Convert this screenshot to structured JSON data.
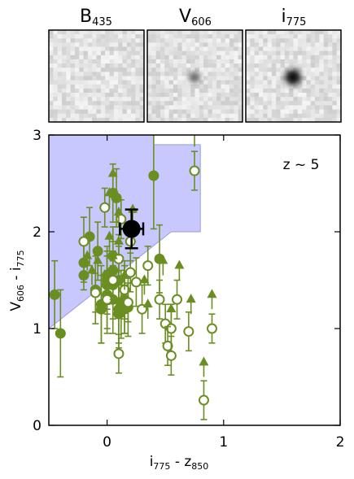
{
  "stamps": [
    {
      "label": "B",
      "sub": "435",
      "source": "none"
    },
    {
      "label": "V",
      "sub": "606",
      "source": "faint"
    },
    {
      "label": "i",
      "sub": "775",
      "source": "bright"
    }
  ],
  "chart_data": {
    "type": "scatter",
    "title": "",
    "annotation": "z ~ 5",
    "xlabel": {
      "main": "i",
      "sub1": "775",
      "sep": " - z",
      "sub2": "850"
    },
    "ylabel": {
      "main": "V",
      "sub1": "606",
      "sep": " - i",
      "sub2": "775"
    },
    "xlim": [
      -0.5,
      2.0
    ],
    "ylim": [
      0,
      3
    ],
    "xticks": [
      0,
      1,
      2
    ],
    "yticks": [
      0,
      1,
      2,
      3
    ],
    "grid": false,
    "colors": {
      "points": "#6b8e23",
      "selection": "#c8c8ff",
      "selection_edge": "#9a9ae0",
      "highlight": "#000000"
    },
    "selection_region": [
      [
        -0.5,
        1.0
      ],
      [
        -0.5,
        3.0
      ],
      [
        0.4,
        3.0
      ],
      [
        0.4,
        2.9
      ],
      [
        0.8,
        2.9
      ],
      [
        0.8,
        2.0
      ],
      [
        0.55,
        2.0
      ],
      [
        -0.5,
        1.0
      ]
    ],
    "series": [
      {
        "kind": "filled",
        "x": [
          -0.45,
          -0.4,
          -0.2,
          -0.2,
          -0.15,
          -0.1,
          -0.05,
          0.0,
          -0.05,
          0.0,
          0.0,
          0.05,
          0.05,
          0.05,
          0.1,
          0.1,
          0.15,
          0.15,
          0.0,
          0.1,
          0.05,
          0.08,
          0.12,
          -0.08,
          0.4,
          0.45,
          0.05,
          0.18
        ],
        "y": [
          1.35,
          0.95,
          1.55,
          1.68,
          1.95,
          1.4,
          1.25,
          1.55,
          1.2,
          1.5,
          1.35,
          1.45,
          1.6,
          1.3,
          1.15,
          1.2,
          1.2,
          1.3,
          1.45,
          1.5,
          1.75,
          2.35,
          1.25,
          1.8,
          2.58,
          1.72,
          2.4,
          1.22
        ],
        "err": [
          0.35,
          0.45,
          0.15,
          0.2,
          0.3,
          0.35,
          0.4,
          0.3,
          0.35,
          0.3,
          0.4,
          0.35,
          0.3,
          0.35,
          0.3,
          0.4,
          0.25,
          0.35,
          0.3,
          0.35,
          0.3,
          0.3,
          0.35,
          0.3,
          0.55,
          0.35,
          0.3,
          0.3
        ]
      },
      {
        "kind": "open",
        "x": [
          -0.2,
          0.0,
          0.05,
          0.1,
          0.15,
          0.2,
          0.25,
          0.35,
          0.3,
          0.45,
          0.5,
          0.55,
          0.6,
          0.7,
          0.52,
          0.55,
          0.75,
          0.9,
          0.83,
          0.1,
          0.18,
          0.22,
          -0.1,
          -0.02,
          0.12,
          0.2
        ],
        "y": [
          1.9,
          1.3,
          1.5,
          1.72,
          1.4,
          1.58,
          1.48,
          1.65,
          1.2,
          1.3,
          1.05,
          1.0,
          1.3,
          0.97,
          0.82,
          0.72,
          2.63,
          1.0,
          0.26,
          0.74,
          1.27,
          2.05,
          1.37,
          2.25,
          2.13,
          1.9
        ],
        "err": [
          0.25,
          0.3,
          0.2,
          0.25,
          0.3,
          0.2,
          0.25,
          0.2,
          0.25,
          0.2,
          0.2,
          0.25,
          0.2,
          0.2,
          0.2,
          0.2,
          0.2,
          0.15,
          0.2,
          0.2,
          0.2,
          0.15,
          0.2,
          0.2,
          0.2,
          0.2
        ]
      },
      {
        "kind": "arrow",
        "x": [
          -0.17,
          -0.13,
          -0.08,
          0.02,
          0.05,
          0.1,
          0.15,
          0.1,
          0.05,
          0.02,
          0.32,
          0.35,
          0.48,
          0.55,
          0.62,
          0.72,
          0.9,
          0.83,
          0.75,
          0.22,
          0.12
        ],
        "y": [
          1.6,
          1.45,
          1.55,
          1.8,
          1.6,
          1.75,
          1.4,
          2.05,
          2.45,
          2.25,
          1.35,
          1.1,
          1.55,
          1.05,
          1.5,
          1.15,
          1.2,
          0.5,
          2.88,
          2.08,
          1.0
        ]
      }
    ],
    "highlight": {
      "x": 0.21,
      "y": 2.03,
      "xerr": 0.1,
      "yerr": 0.2
    }
  }
}
